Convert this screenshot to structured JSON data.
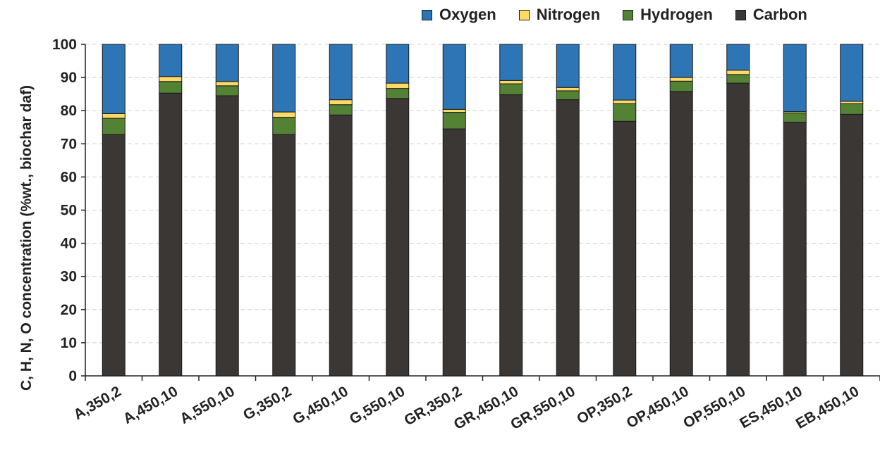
{
  "chart_data": {
    "type": "bar",
    "stacked": true,
    "title": "",
    "xlabel": "",
    "ylabel": "C, H, N, O concentration (%wt., biochar daf)",
    "ylim": [
      0,
      100
    ],
    "yticks": [
      0,
      10,
      20,
      30,
      40,
      50,
      60,
      70,
      80,
      90,
      100
    ],
    "grid": "horizontal dashed",
    "legend_position": "top",
    "categories": [
      "A,350,2",
      "A,450,10",
      "A,550,10",
      "G,350,2",
      "G,450,10",
      "G,550,10",
      "GR,350,2",
      "GR,450,10",
      "GR,550,10",
      "OP,350,2",
      "OP,450,10",
      "OP,550,10",
      "ES,450,10",
      "EB,450,10"
    ],
    "series": [
      {
        "name": "Carbon",
        "color": "#3b3734",
        "values": [
          72.8,
          85.3,
          84.5,
          72.8,
          78.7,
          83.7,
          74.5,
          84.8,
          83.3,
          76.8,
          85.8,
          88.3,
          76.5,
          78.9
        ]
      },
      {
        "name": "Hydrogen",
        "color": "#548235",
        "values": [
          4.9,
          3.5,
          3.0,
          5.2,
          3.1,
          3.0,
          5.0,
          3.3,
          2.7,
          5.3,
          3.1,
          2.6,
          2.8,
          3.2
        ]
      },
      {
        "name": "Nitrogen",
        "color": "#ffd966",
        "values": [
          1.4,
          1.5,
          1.3,
          1.6,
          1.5,
          1.6,
          0.9,
          1.0,
          1.0,
          1.1,
          1.1,
          1.3,
          0.4,
          0.7
        ]
      },
      {
        "name": "Oxygen",
        "color": "#2e75b6",
        "values": [
          20.9,
          9.7,
          11.2,
          20.4,
          16.7,
          11.7,
          19.6,
          10.9,
          13.0,
          16.8,
          10.0,
          7.8,
          20.3,
          17.2
        ]
      }
    ],
    "legend_order": [
      "Oxygen",
      "Nitrogen",
      "Hydrogen",
      "Carbon"
    ]
  }
}
